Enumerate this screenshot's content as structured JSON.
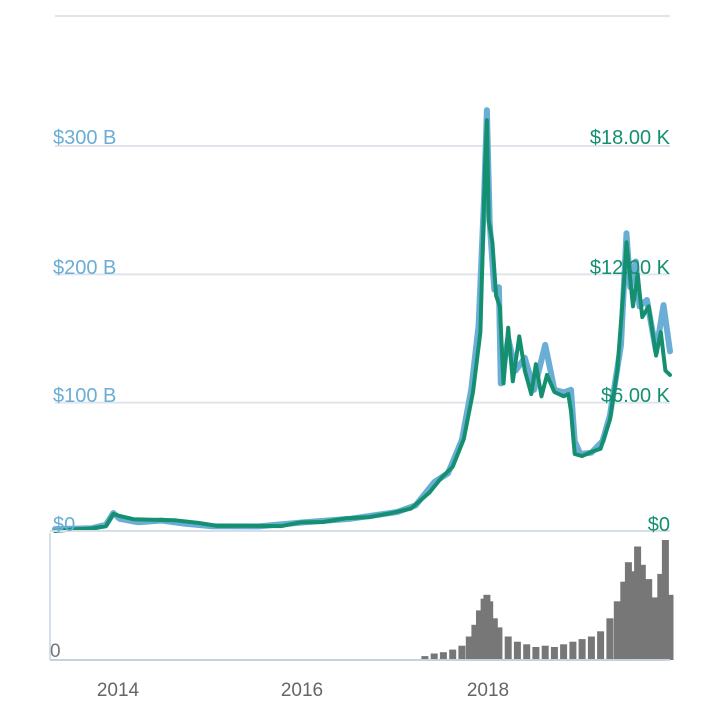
{
  "chart_data": {
    "type": "line",
    "grid": true,
    "colors": {
      "market_cap": "#6aaed6",
      "price": "#149070",
      "volume": "#777777",
      "grid": "#e1e4ea",
      "axis": "#c8d0e0",
      "x_label": "#666666"
    },
    "x_ticks": [
      "2014",
      "2016",
      "2018"
    ],
    "left_axis": {
      "ticks": [
        "$0",
        "$100 B",
        "$200 B",
        "$300 B"
      ],
      "range": [
        0,
        300
      ]
    },
    "right_axis": {
      "ticks": [
        "$0",
        "$6.00 K",
        "$12.00 K",
        "$18.00 K"
      ],
      "range": [
        0,
        18000
      ]
    },
    "volume_axis": {
      "ticks": [
        "0"
      ]
    },
    "x_range": [
      2013.3,
      2019.95
    ],
    "series": [
      {
        "key": "market_cap",
        "axis": "left",
        "values": [
          [
            2013.3,
            1.5
          ],
          [
            2013.7,
            2.2
          ],
          [
            2013.85,
            4.8
          ],
          [
            2013.93,
            14.0
          ],
          [
            2014.0,
            9.5
          ],
          [
            2014.2,
            6.8
          ],
          [
            2014.45,
            8.2
          ],
          [
            2014.7,
            5.8
          ],
          [
            2015.0,
            3.7
          ],
          [
            2015.5,
            3.6
          ],
          [
            2016.0,
            6.8
          ],
          [
            2016.5,
            9.6
          ],
          [
            2017.0,
            14.8
          ],
          [
            2017.2,
            20.0
          ],
          [
            2017.4,
            38.0
          ],
          [
            2017.55,
            45.0
          ],
          [
            2017.7,
            71.0
          ],
          [
            2017.8,
            110.0
          ],
          [
            2017.88,
            160.0
          ],
          [
            2017.94,
            260.0
          ],
          [
            2017.97,
            328.0
          ],
          [
            2018.0,
            240.0
          ],
          [
            2018.05,
            188.0
          ],
          [
            2018.1,
            190.0
          ],
          [
            2018.12,
            115.0
          ],
          [
            2018.2,
            150.0
          ],
          [
            2018.28,
            125.0
          ],
          [
            2018.38,
            135.0
          ],
          [
            2018.48,
            110.0
          ],
          [
            2018.6,
            145.0
          ],
          [
            2018.7,
            110.0
          ],
          [
            2018.8,
            108.0
          ],
          [
            2018.88,
            110.0
          ],
          [
            2018.92,
            70.0
          ],
          [
            2018.98,
            60.0
          ],
          [
            2019.1,
            61.0
          ],
          [
            2019.22,
            70.0
          ],
          [
            2019.3,
            90.0
          ],
          [
            2019.42,
            145.0
          ],
          [
            2019.48,
            232.0
          ],
          [
            2019.52,
            190.0
          ],
          [
            2019.58,
            210.0
          ],
          [
            2019.62,
            175.0
          ],
          [
            2019.7,
            180.0
          ],
          [
            2019.8,
            140.0
          ],
          [
            2019.88,
            176.0
          ],
          [
            2019.95,
            140.0
          ]
        ]
      },
      {
        "key": "price",
        "axis": "right",
        "values": [
          [
            2013.3,
            0
          ],
          [
            2013.5,
            75
          ],
          [
            2013.7,
            120
          ],
          [
            2013.85,
            220
          ],
          [
            2013.93,
            800
          ],
          [
            2014.0,
            700
          ],
          [
            2014.15,
            550
          ],
          [
            2014.4,
            520
          ],
          [
            2014.6,
            500
          ],
          [
            2014.85,
            380
          ],
          [
            2015.05,
            240
          ],
          [
            2015.4,
            240
          ],
          [
            2015.75,
            230
          ],
          [
            2015.95,
            400
          ],
          [
            2016.2,
            420
          ],
          [
            2016.45,
            600
          ],
          [
            2016.7,
            650
          ],
          [
            2016.95,
            850
          ],
          [
            2017.15,
            1050
          ],
          [
            2017.35,
            1800
          ],
          [
            2017.48,
            2500
          ],
          [
            2017.6,
            3000
          ],
          [
            2017.72,
            4300
          ],
          [
            2017.82,
            6500
          ],
          [
            2017.9,
            9300
          ],
          [
            2017.95,
            17000
          ],
          [
            2017.97,
            19200
          ],
          [
            2017.99,
            14500
          ],
          [
            2018.03,
            13500
          ],
          [
            2018.07,
            11000
          ],
          [
            2018.11,
            10500
          ],
          [
            2018.15,
            6900
          ],
          [
            2018.2,
            9500
          ],
          [
            2018.25,
            7000
          ],
          [
            2018.32,
            9100
          ],
          [
            2018.38,
            7500
          ],
          [
            2018.45,
            6400
          ],
          [
            2018.5,
            7800
          ],
          [
            2018.56,
            6300
          ],
          [
            2018.62,
            7300
          ],
          [
            2018.7,
            6500
          ],
          [
            2018.8,
            6300
          ],
          [
            2018.85,
            6400
          ],
          [
            2018.88,
            5600
          ],
          [
            2018.92,
            3600
          ],
          [
            2019.0,
            3500
          ],
          [
            2019.1,
            3700
          ],
          [
            2019.2,
            3850
          ],
          [
            2019.3,
            5200
          ],
          [
            2019.38,
            7500
          ],
          [
            2019.45,
            11500
          ],
          [
            2019.48,
            13500
          ],
          [
            2019.55,
            10500
          ],
          [
            2019.6,
            12000
          ],
          [
            2019.65,
            10000
          ],
          [
            2019.72,
            10500
          ],
          [
            2019.8,
            8200
          ],
          [
            2019.85,
            9300
          ],
          [
            2019.9,
            7500
          ],
          [
            2019.95,
            7300
          ]
        ]
      },
      {
        "key": "volume",
        "axis": "volume",
        "type": "bar",
        "values": [
          [
            2017.3,
            0.03
          ],
          [
            2017.4,
            0.05
          ],
          [
            2017.5,
            0.06
          ],
          [
            2017.6,
            0.08
          ],
          [
            2017.7,
            0.11
          ],
          [
            2017.78,
            0.18
          ],
          [
            2017.84,
            0.27
          ],
          [
            2017.89,
            0.38
          ],
          [
            2017.94,
            0.47
          ],
          [
            2017.97,
            0.5
          ],
          [
            2018.0,
            0.45
          ],
          [
            2018.05,
            0.32
          ],
          [
            2018.1,
            0.25
          ],
          [
            2018.2,
            0.18
          ],
          [
            2018.3,
            0.14
          ],
          [
            2018.4,
            0.12
          ],
          [
            2018.5,
            0.1
          ],
          [
            2018.6,
            0.11
          ],
          [
            2018.7,
            0.1
          ],
          [
            2018.8,
            0.12
          ],
          [
            2018.9,
            0.14
          ],
          [
            2019.0,
            0.16
          ],
          [
            2019.1,
            0.18
          ],
          [
            2019.2,
            0.22
          ],
          [
            2019.3,
            0.32
          ],
          [
            2019.38,
            0.45
          ],
          [
            2019.45,
            0.6
          ],
          [
            2019.5,
            0.75
          ],
          [
            2019.55,
            0.68
          ],
          [
            2019.6,
            0.87
          ],
          [
            2019.65,
            0.73
          ],
          [
            2019.72,
            0.62
          ],
          [
            2019.78,
            0.48
          ],
          [
            2019.85,
            0.66
          ],
          [
            2019.9,
            0.92
          ],
          [
            2019.95,
            0.5
          ]
        ]
      }
    ]
  }
}
